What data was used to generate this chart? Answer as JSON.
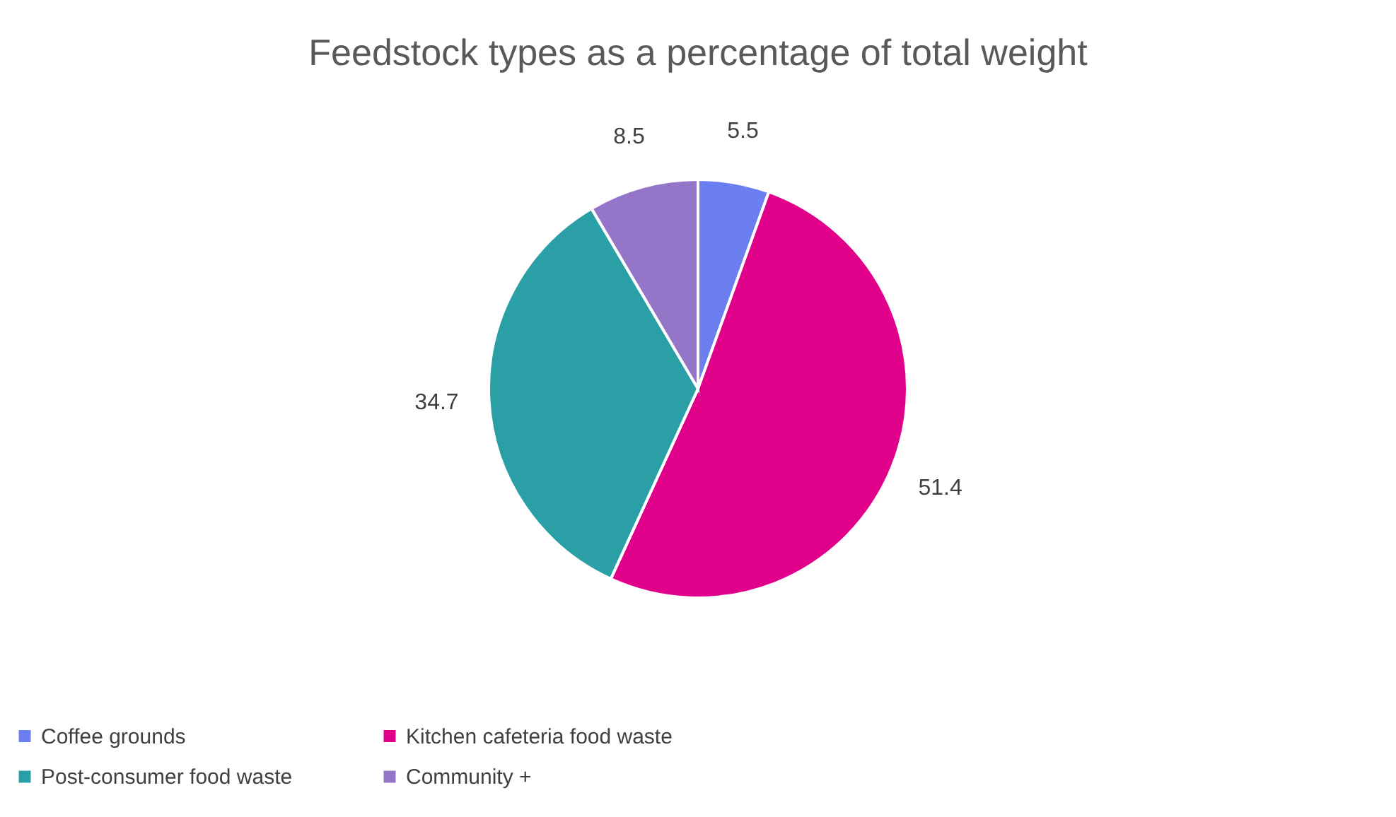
{
  "chart_data": {
    "type": "pie",
    "title": "Feedstock types as a percentage of total weight",
    "categories": [
      "Coffee grounds",
      "Kitchen cafeteria food waste",
      "Post-consumer food waste",
      "Community +"
    ],
    "values": [
      5.5,
      51.4,
      34.7,
      8.5
    ],
    "colors": [
      "#6b7ff0",
      "#e0008a",
      "#2aa0a6",
      "#9575c8"
    ],
    "data_labels": true,
    "legend": "bottom"
  }
}
